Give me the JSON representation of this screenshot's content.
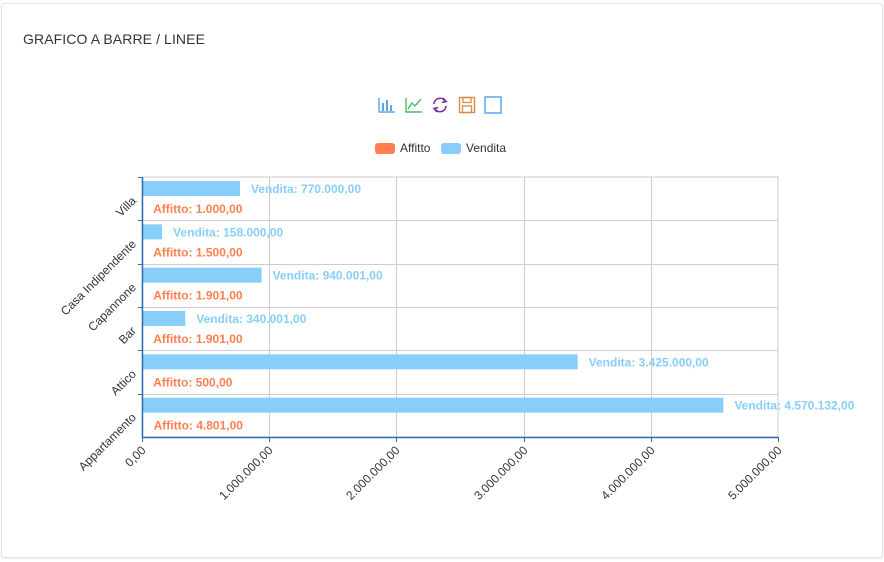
{
  "panel": {
    "title": "GRAFICO A BARRE / LINEE"
  },
  "toolbox": [
    {
      "icon": "bar-chart-icon",
      "color": "#5ba6e5"
    },
    {
      "icon": "line-chart-icon",
      "color": "#4cbb6c"
    },
    {
      "icon": "restore-icon",
      "color": "#7b2a9e"
    },
    {
      "icon": "save-image-icon",
      "color": "#d98c4a"
    },
    {
      "icon": "data-view-icon",
      "color": "#5ba6e5"
    }
  ],
  "legend": [
    {
      "label": "Affitto",
      "color": "#ff7f50"
    },
    {
      "label": "Vendita",
      "color": "#87cefa"
    }
  ],
  "chart_data": {
    "type": "bar",
    "orientation": "horizontal",
    "categories": [
      "Appartamento",
      "Attico",
      "Bar",
      "Capannone",
      "Casa Indipendente",
      "Villa"
    ],
    "series": [
      {
        "name": "Affitto",
        "color": "#ff7f50",
        "values": [
          4801,
          500,
          1901,
          1901,
          1500,
          1000
        ],
        "labels": [
          "Affitto: 4.801,00",
          "Affitto: 500,00",
          "Affitto: 1.901,00",
          "Affitto: 1.901,00",
          "Affitto: 1.500,00",
          "Affitto: 1.000,00"
        ]
      },
      {
        "name": "Vendita",
        "color": "#87cefa",
        "values": [
          4570132,
          3425000,
          340001,
          940001,
          158000,
          770000
        ],
        "labels": [
          "Vendita: 4.570.132,00",
          "Vendita: 3.425.000,00",
          "Vendita: 340.001,00",
          "Vendita: 940.001,00",
          "Vendita: 158.000,00",
          "Vendita: 770.000,00"
        ]
      }
    ],
    "xlim": [
      0,
      5000000
    ],
    "xticks": [
      0,
      1000000,
      2000000,
      3000000,
      4000000,
      5000000
    ],
    "xtick_labels": [
      "0,00",
      "1.000.000,00",
      "2.000.000,00",
      "3.000.000,00",
      "4.000.000,00",
      "5.000.000,00"
    ],
    "grid": true,
    "legend_position": "top-center"
  }
}
